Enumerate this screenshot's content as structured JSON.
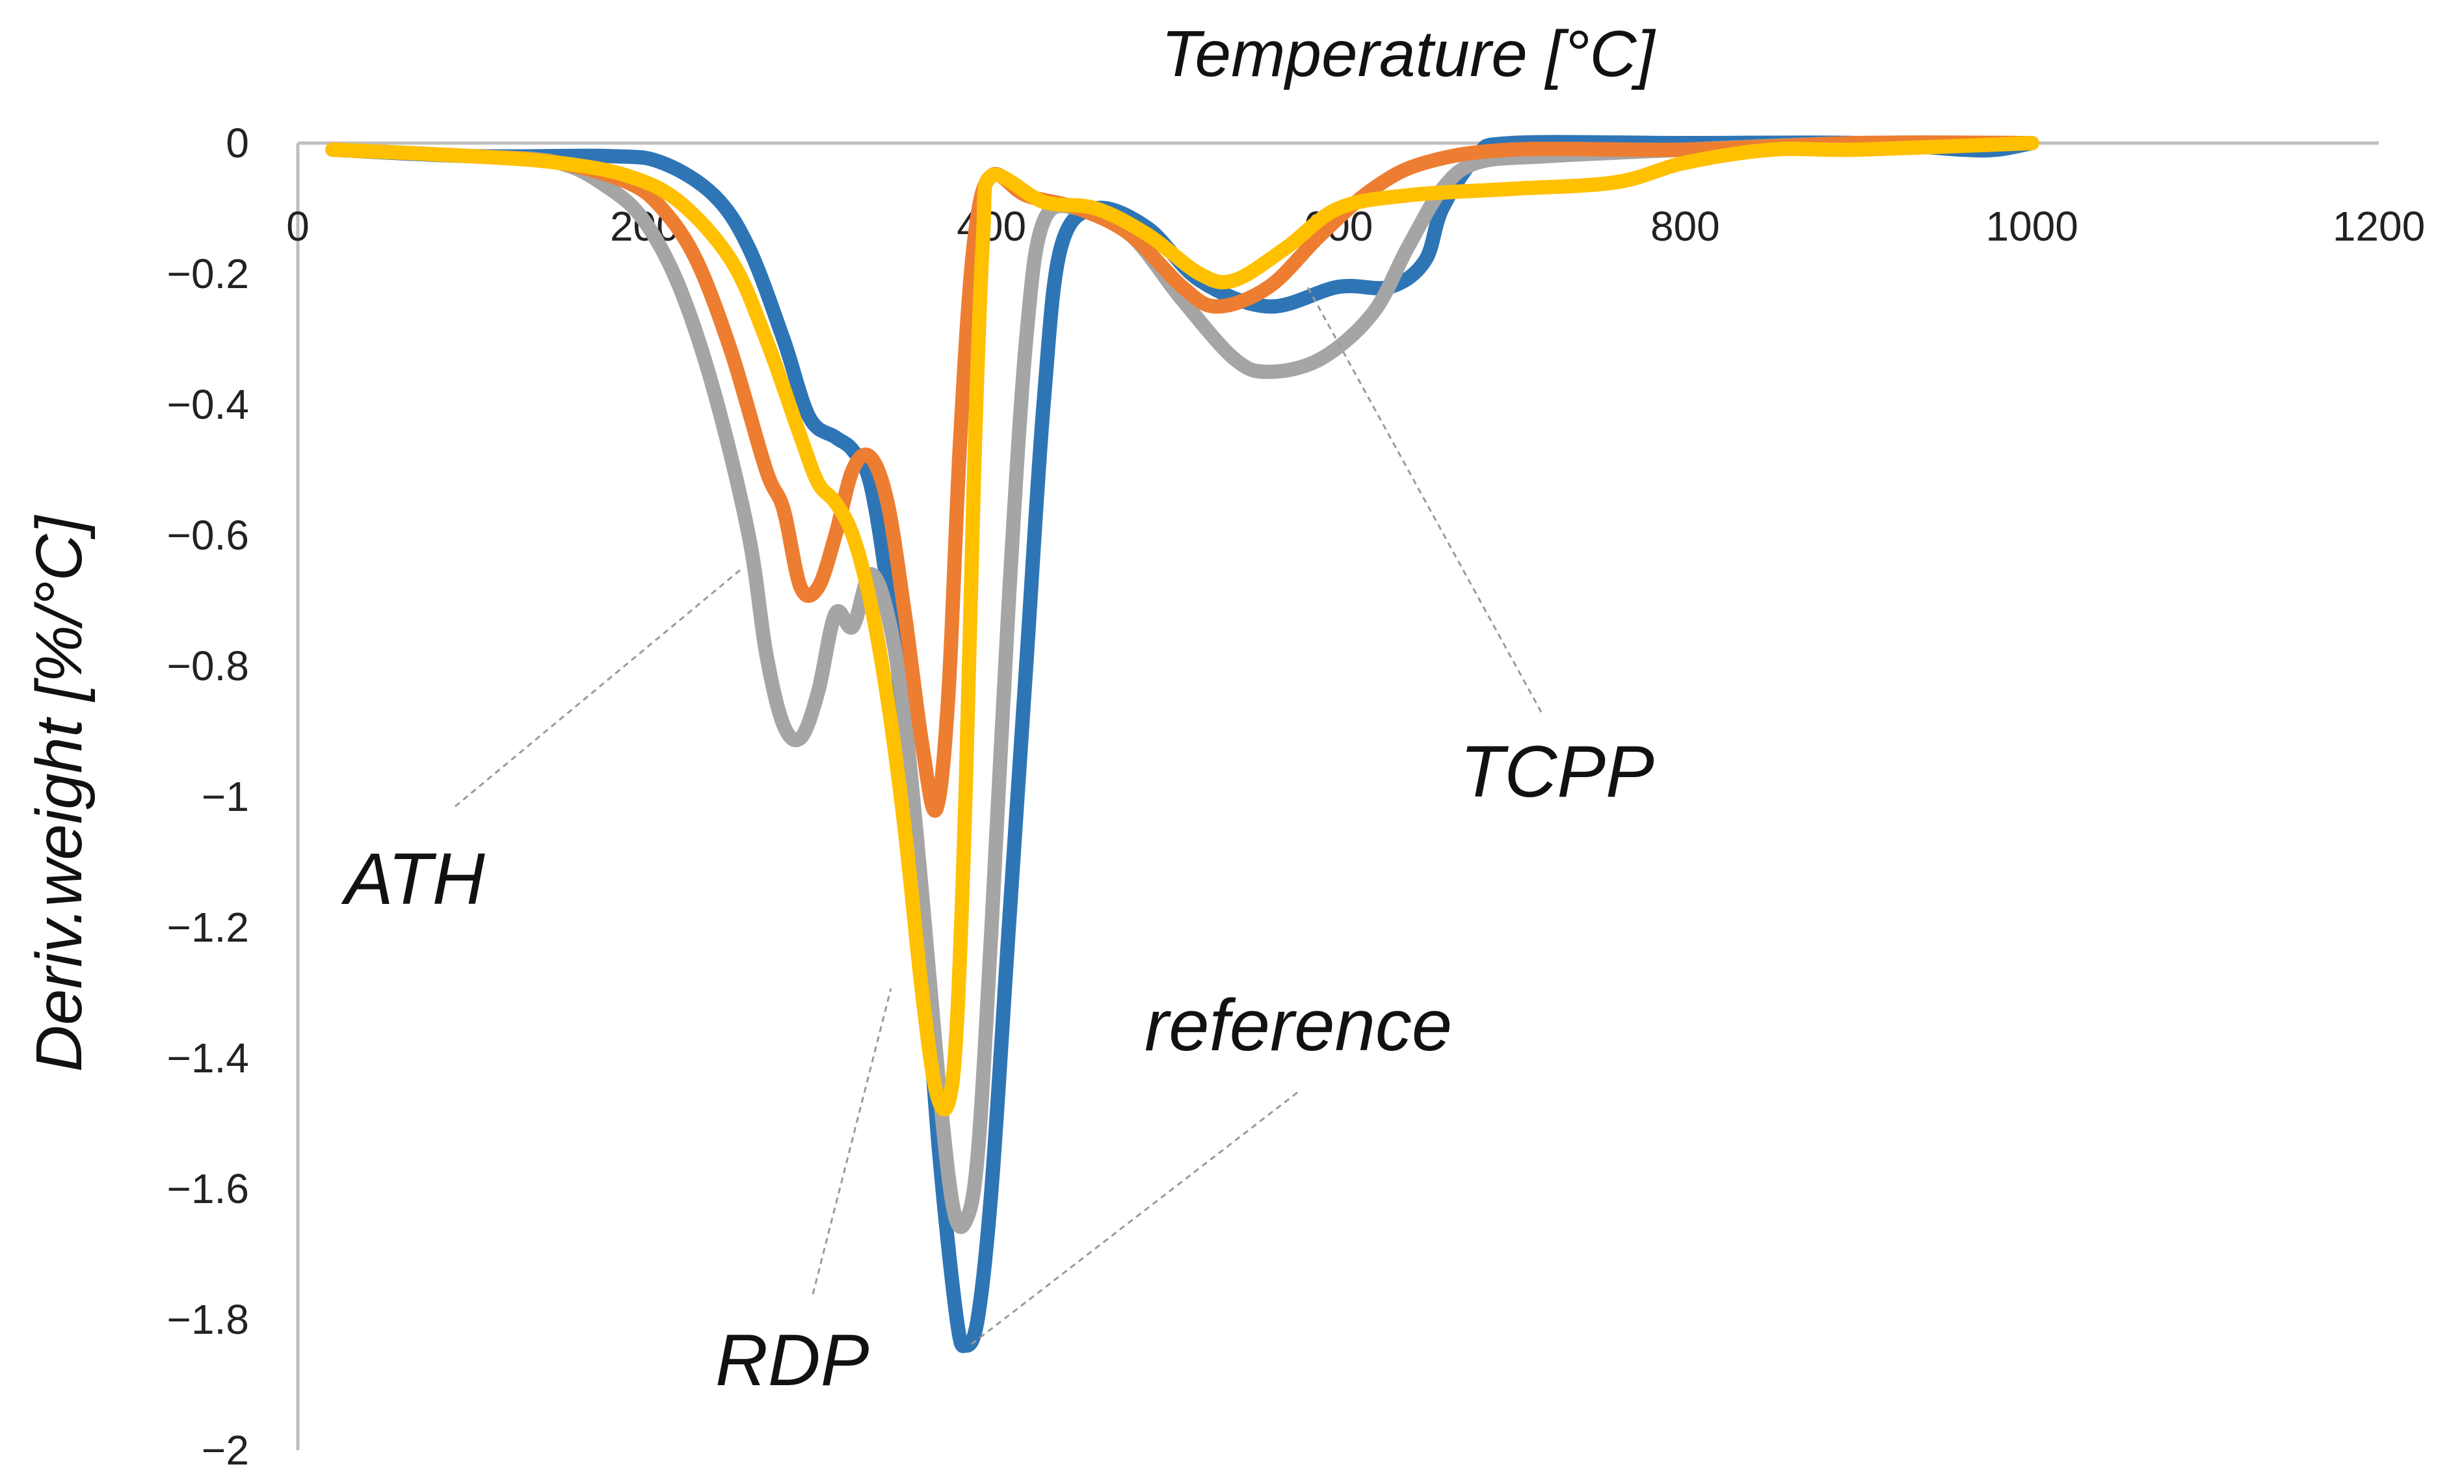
{
  "chart_data": {
    "type": "line",
    "title": "",
    "xlabel": "Temperature [°C]",
    "ylabel": "Deriv.weight [%/°C]",
    "xlim": [
      0,
      1200
    ],
    "ylim": [
      -2,
      0
    ],
    "xticks": [
      0,
      200,
      400,
      600,
      800,
      1000,
      1200
    ],
    "yticks": [
      0,
      -0.2,
      -0.4,
      -0.6,
      -0.8,
      -1,
      -1.2,
      -1.4,
      -1.6,
      -1.8,
      -2
    ],
    "x_axis_position": "top",
    "grid": false,
    "legend": "none",
    "series": [
      {
        "name": "reference",
        "color": "#2E75B6",
        "points": [
          [
            20,
            -0.01
          ],
          [
            100,
            -0.02
          ],
          [
            180,
            -0.02
          ],
          [
            210,
            -0.03
          ],
          [
            240,
            -0.08
          ],
          [
            260,
            -0.16
          ],
          [
            280,
            -0.3
          ],
          [
            295,
            -0.42
          ],
          [
            310,
            -0.45
          ],
          [
            320,
            -0.47
          ],
          [
            330,
            -0.52
          ],
          [
            340,
            -0.68
          ],
          [
            350,
            -0.9
          ],
          [
            360,
            -1.2
          ],
          [
            370,
            -1.55
          ],
          [
            380,
            -1.8
          ],
          [
            385,
            -1.84
          ],
          [
            392,
            -1.8
          ],
          [
            400,
            -1.6
          ],
          [
            410,
            -1.2
          ],
          [
            420,
            -0.8
          ],
          [
            430,
            -0.4
          ],
          [
            440,
            -0.16
          ],
          [
            460,
            -0.1
          ],
          [
            490,
            -0.13
          ],
          [
            520,
            -0.21
          ],
          [
            560,
            -0.25
          ],
          [
            600,
            -0.22
          ],
          [
            630,
            -0.22
          ],
          [
            650,
            -0.18
          ],
          [
            660,
            -0.1
          ],
          [
            680,
            -0.02
          ],
          [
            700,
            0
          ],
          [
            800,
            0
          ],
          [
            900,
            0
          ],
          [
            960,
            -0.01
          ],
          [
            980,
            -0.01
          ],
          [
            1000,
            0
          ]
        ]
      },
      {
        "name": "ATH",
        "color": "#A5A5A5",
        "points": [
          [
            20,
            -0.01
          ],
          [
            100,
            -0.02
          ],
          [
            150,
            -0.03
          ],
          [
            180,
            -0.07
          ],
          [
            200,
            -0.12
          ],
          [
            220,
            -0.22
          ],
          [
            240,
            -0.38
          ],
          [
            260,
            -0.6
          ],
          [
            270,
            -0.78
          ],
          [
            280,
            -0.89
          ],
          [
            290,
            -0.91
          ],
          [
            300,
            -0.84
          ],
          [
            310,
            -0.72
          ],
          [
            320,
            -0.74
          ],
          [
            330,
            -0.66
          ],
          [
            340,
            -0.72
          ],
          [
            350,
            -0.88
          ],
          [
            360,
            -1.15
          ],
          [
            370,
            -1.45
          ],
          [
            378,
            -1.63
          ],
          [
            385,
            -1.65
          ],
          [
            392,
            -1.55
          ],
          [
            400,
            -1.2
          ],
          [
            410,
            -0.7
          ],
          [
            420,
            -0.3
          ],
          [
            430,
            -0.12
          ],
          [
            450,
            -0.1
          ],
          [
            480,
            -0.14
          ],
          [
            510,
            -0.24
          ],
          [
            540,
            -0.33
          ],
          [
            560,
            -0.35
          ],
          [
            590,
            -0.33
          ],
          [
            620,
            -0.26
          ],
          [
            640,
            -0.16
          ],
          [
            660,
            -0.07
          ],
          [
            680,
            -0.03
          ],
          [
            720,
            -0.02
          ],
          [
            800,
            -0.01
          ],
          [
            900,
            0
          ],
          [
            1000,
            0
          ]
        ]
      },
      {
        "name": "TCPP",
        "color": "#ED7D31",
        "points": [
          [
            20,
            -0.01
          ],
          [
            100,
            -0.02
          ],
          [
            150,
            -0.03
          ],
          [
            190,
            -0.06
          ],
          [
            210,
            -0.1
          ],
          [
            230,
            -0.18
          ],
          [
            250,
            -0.32
          ],
          [
            270,
            -0.5
          ],
          [
            280,
            -0.56
          ],
          [
            290,
            -0.68
          ],
          [
            300,
            -0.68
          ],
          [
            310,
            -0.6
          ],
          [
            320,
            -0.5
          ],
          [
            330,
            -0.48
          ],
          [
            340,
            -0.55
          ],
          [
            350,
            -0.72
          ],
          [
            360,
            -0.92
          ],
          [
            368,
            -1.02
          ],
          [
            375,
            -0.85
          ],
          [
            382,
            -0.45
          ],
          [
            390,
            -0.15
          ],
          [
            400,
            -0.05
          ],
          [
            420,
            -0.08
          ],
          [
            450,
            -0.1
          ],
          [
            480,
            -0.14
          ],
          [
            510,
            -0.22
          ],
          [
            530,
            -0.25
          ],
          [
            560,
            -0.22
          ],
          [
            590,
            -0.14
          ],
          [
            620,
            -0.07
          ],
          [
            650,
            -0.03
          ],
          [
            700,
            -0.01
          ],
          [
            800,
            -0.01
          ],
          [
            900,
            0
          ],
          [
            1000,
            0
          ]
        ]
      },
      {
        "name": "RDP",
        "color": "#FFC000",
        "points": [
          [
            20,
            -0.01
          ],
          [
            100,
            -0.02
          ],
          [
            150,
            -0.03
          ],
          [
            190,
            -0.05
          ],
          [
            220,
            -0.09
          ],
          [
            250,
            -0.18
          ],
          [
            270,
            -0.3
          ],
          [
            290,
            -0.45
          ],
          [
            300,
            -0.52
          ],
          [
            310,
            -0.55
          ],
          [
            320,
            -0.6
          ],
          [
            330,
            -0.7
          ],
          [
            340,
            -0.85
          ],
          [
            350,
            -1.05
          ],
          [
            360,
            -1.3
          ],
          [
            368,
            -1.45
          ],
          [
            375,
            -1.47
          ],
          [
            380,
            -1.35
          ],
          [
            385,
            -1.0
          ],
          [
            390,
            -0.5
          ],
          [
            395,
            -0.15
          ],
          [
            400,
            -0.05
          ],
          [
            430,
            -0.09
          ],
          [
            460,
            -0.1
          ],
          [
            490,
            -0.14
          ],
          [
            520,
            -0.2
          ],
          [
            540,
            -0.21
          ],
          [
            570,
            -0.16
          ],
          [
            600,
            -0.1
          ],
          [
            640,
            -0.08
          ],
          [
            700,
            -0.07
          ],
          [
            760,
            -0.06
          ],
          [
            800,
            -0.03
          ],
          [
            850,
            -0.01
          ],
          [
            900,
            -0.01
          ],
          [
            1000,
            0
          ]
        ]
      }
    ],
    "annotations": [
      {
        "text": "ATH",
        "series": "ATH",
        "anchor_x": 255,
        "anchor_y": -0.66
      },
      {
        "text": "TCPP",
        "series": "TCPP",
        "anchor_x": 575,
        "anchor_y": -0.24
      },
      {
        "text": "reference",
        "series": "reference",
        "anchor_x": 385,
        "anchor_y": -1.84
      },
      {
        "text": "RDP",
        "series": "RDP",
        "anchor_x": 345,
        "anchor_y": -1.3
      }
    ]
  }
}
